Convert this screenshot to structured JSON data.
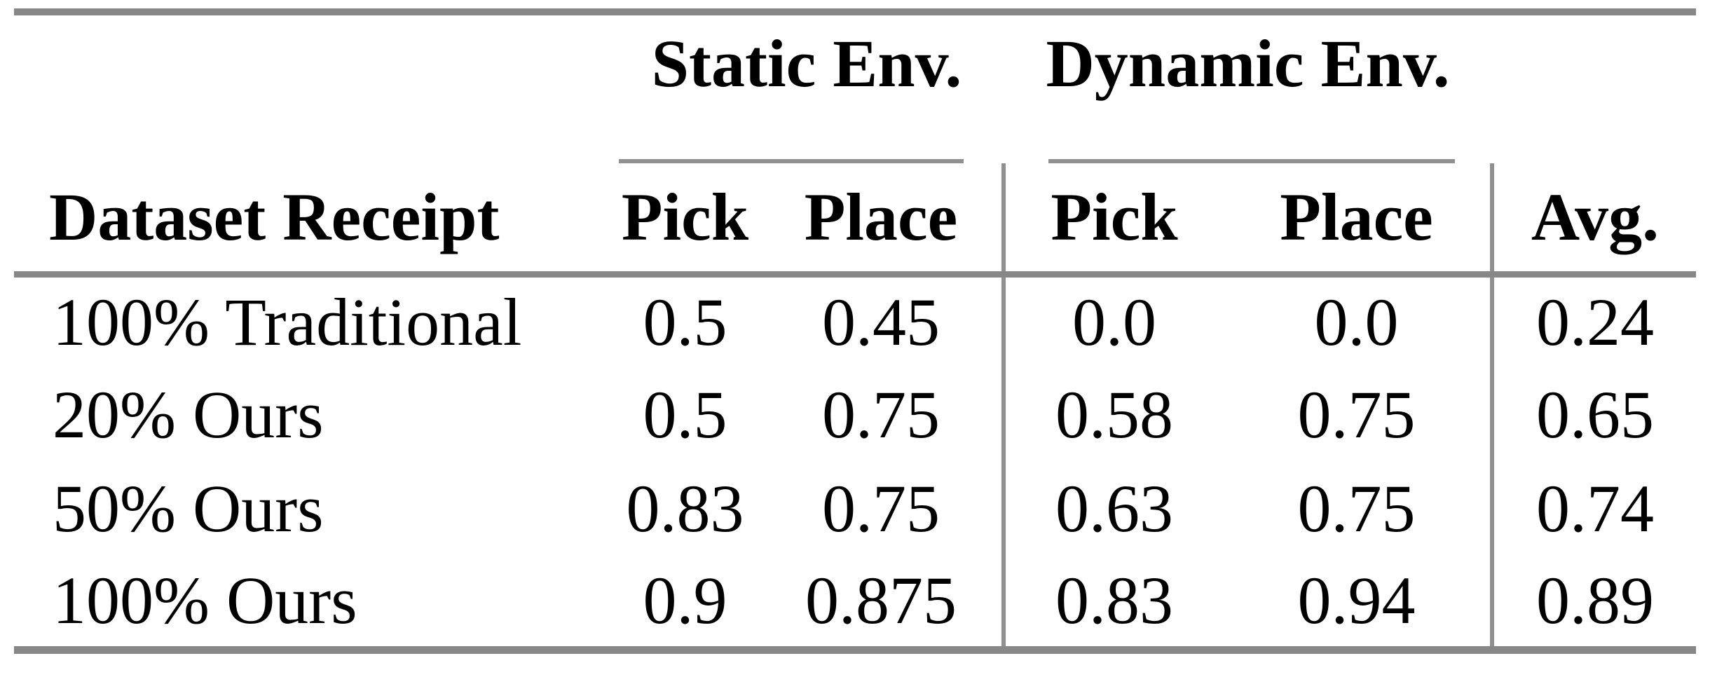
{
  "table": {
    "corner_label": "Dataset Receipt",
    "group_headers": [
      {
        "label": "Static Env."
      },
      {
        "label": "Dynamic Env."
      }
    ],
    "col_headers": {
      "static_pick": "Pick",
      "static_place": "Place",
      "dynamic_pick": "Pick",
      "dynamic_place": "Place",
      "avg": "Avg."
    },
    "rows": [
      [
        "100% Traditional",
        "0.5",
        "0.45",
        "0.0",
        "0.0",
        "0.24"
      ],
      [
        "20% Ours",
        "0.5",
        "0.75",
        "0.58",
        "0.75",
        "0.65"
      ],
      [
        "50% Ours",
        "0.83",
        "0.75",
        "0.63",
        "0.75",
        "0.74"
      ],
      [
        "100% Ours",
        "0.9",
        "0.875",
        "0.83",
        "0.94",
        "0.89"
      ]
    ],
    "colors": {
      "heavy_rule": "#878787",
      "light_rule": "#909090",
      "text": "#000000",
      "background": "#ffffff"
    }
  },
  "chart_data": {
    "type": "table",
    "title": "",
    "columns": [
      "Dataset Receipt",
      "Static Env. Pick",
      "Static Env. Place",
      "Dynamic Env. Pick",
      "Dynamic Env. Place",
      "Avg."
    ],
    "rows": [
      [
        "100% Traditional",
        0.5,
        0.45,
        0.0,
        0.0,
        0.24
      ],
      [
        "20% Ours",
        0.5,
        0.75,
        0.58,
        0.75,
        0.65
      ],
      [
        "50% Ours",
        0.83,
        0.75,
        0.63,
        0.75,
        0.74
      ],
      [
        "100% Ours",
        0.9,
        0.875,
        0.83,
        0.94,
        0.89
      ]
    ]
  }
}
